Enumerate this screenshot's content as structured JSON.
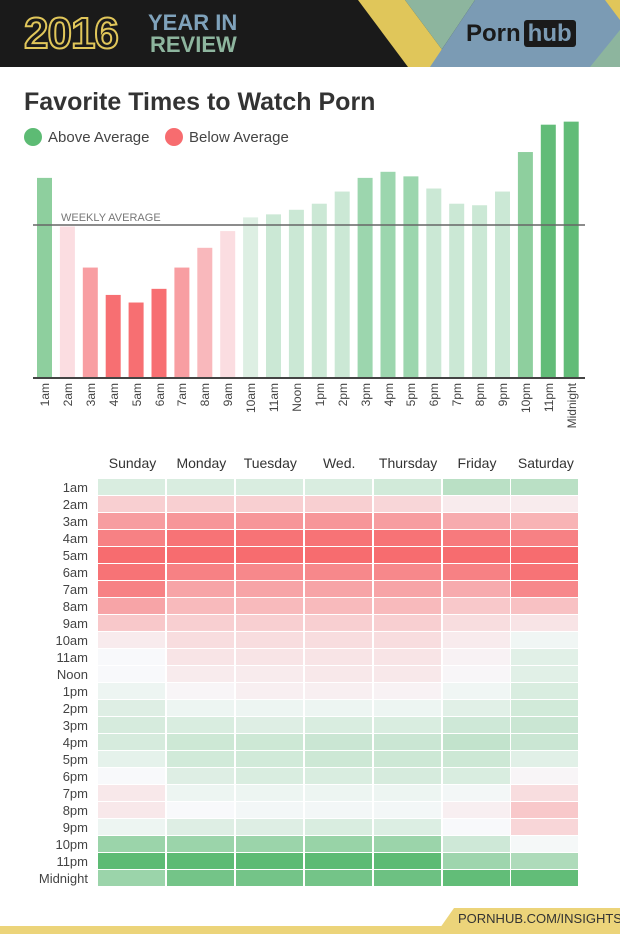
{
  "header": {
    "year": "2016",
    "year_in": "YEAR IN",
    "review": "REVIEW",
    "logo_porn": "Porn",
    "logo_hub": "hub",
    "stripe_colors": {
      "yellow": "#e0c65a",
      "green": "#8db59e",
      "blue": "#7b9bb4"
    }
  },
  "title": "Favorite Times to Watch Porn",
  "legend": {
    "above": "Above Average",
    "below": "Below Average",
    "above_color": "#5dbb74",
    "below_color": "#f76c6f"
  },
  "chart_data": [
    {
      "type": "bar",
      "title": "Favorite Times to Watch Porn",
      "reference_line_label": "WEEKLY AVERAGE",
      "reference_value": 100,
      "categories": [
        "1am",
        "2am",
        "3am",
        "4am",
        "5am",
        "6am",
        "7am",
        "8am",
        "9am",
        "10am",
        "11am",
        "Noon",
        "1pm",
        "2pm",
        "3pm",
        "4pm",
        "5pm",
        "6pm",
        "7pm",
        "8pm",
        "9pm",
        "10pm",
        "11pm",
        "Midnight"
      ],
      "values": [
        131,
        99,
        72,
        54,
        49,
        58,
        72,
        85,
        96,
        105,
        107,
        110,
        114,
        122,
        131,
        135,
        132,
        124,
        114,
        113,
        122,
        148,
        166,
        168
      ],
      "colors": [
        "#8ecf9e",
        "#fbdde1",
        "#f89ea2",
        "#f76f72",
        "#f76f72",
        "#f76f72",
        "#f89ea2",
        "#f9b8bc",
        "#fbdde1",
        "#ddefe3",
        "#cbe8d5",
        "#cbe8d5",
        "#cbe8d5",
        "#cbe8d5",
        "#9cd6ae",
        "#9cd6ae",
        "#9cd6ae",
        "#cbe8d5",
        "#cbe8d5",
        "#cbe8d5",
        "#cbe8d5",
        "#8ecf9e",
        "#62bc78",
        "#62bc78"
      ],
      "ylim": [
        0,
        175
      ],
      "grid": false
    },
    {
      "type": "heatmap",
      "columns": [
        "Sunday",
        "Monday",
        "Tuesday",
        "Wed.",
        "Thursday",
        "Friday",
        "Saturday"
      ],
      "rows": [
        "1am",
        "2am",
        "3am",
        "4am",
        "5am",
        "6am",
        "7am",
        "8am",
        "9am",
        "10am",
        "11am",
        "Noon",
        "1pm",
        "2pm",
        "3pm",
        "4pm",
        "5pm",
        "6pm",
        "7pm",
        "8pm",
        "9pm",
        "10pm",
        "11pm",
        "Midnight"
      ],
      "scale": {
        "min": -1,
        "max": 1,
        "low_color": "#f76c6f",
        "mid_color": "#f8f9fb",
        "high_color": "#5dbb74"
      },
      "values": [
        [
          0.2,
          0.2,
          0.2,
          0.2,
          0.25,
          0.4,
          0.4
        ],
        [
          -0.3,
          -0.3,
          -0.3,
          -0.3,
          -0.25,
          -0.1,
          -0.1
        ],
        [
          -0.65,
          -0.7,
          -0.7,
          -0.7,
          -0.65,
          -0.55,
          -0.5
        ],
        [
          -0.85,
          -0.95,
          -0.95,
          -0.95,
          -0.95,
          -0.9,
          -0.85
        ],
        [
          -1,
          -1,
          -1,
          -1,
          -1,
          -1,
          -1
        ],
        [
          -0.95,
          -0.85,
          -0.8,
          -0.8,
          -0.8,
          -0.85,
          -0.95
        ],
        [
          -0.85,
          -0.6,
          -0.6,
          -0.6,
          -0.6,
          -0.55,
          -0.8
        ],
        [
          -0.6,
          -0.45,
          -0.45,
          -0.45,
          -0.45,
          -0.35,
          -0.4
        ],
        [
          -0.35,
          -0.3,
          -0.3,
          -0.3,
          -0.3,
          -0.2,
          -0.15
        ],
        [
          -0.1,
          -0.2,
          -0.2,
          -0.2,
          -0.2,
          -0.1,
          0.05
        ],
        [
          0,
          -0.15,
          -0.15,
          -0.15,
          -0.15,
          -0.05,
          0.15
        ],
        [
          0,
          -0.1,
          -0.1,
          -0.12,
          -0.12,
          -0.02,
          0.15
        ],
        [
          0.07,
          -0.03,
          -0.07,
          -0.07,
          -0.05,
          0.05,
          0.2
        ],
        [
          0.17,
          0.07,
          0.07,
          0.07,
          0.07,
          0.15,
          0.25
        ],
        [
          0.22,
          0.2,
          0.17,
          0.2,
          0.2,
          0.27,
          0.3
        ],
        [
          0.22,
          0.28,
          0.28,
          0.3,
          0.3,
          0.35,
          0.3
        ],
        [
          0.12,
          0.25,
          0.25,
          0.28,
          0.28,
          0.28,
          0.15
        ],
        [
          0,
          0.17,
          0.2,
          0.2,
          0.22,
          0.2,
          -0.03
        ],
        [
          -0.12,
          0.07,
          0.07,
          0.07,
          0.07,
          0.03,
          -0.2
        ],
        [
          -0.12,
          0,
          0.03,
          0.03,
          0.03,
          -0.07,
          -0.35
        ],
        [
          0.07,
          0.17,
          0.17,
          0.2,
          0.18,
          0,
          -0.25
        ],
        [
          0.6,
          0.6,
          0.6,
          0.62,
          0.6,
          0.27,
          0.02
        ],
        [
          1,
          1,
          1,
          1,
          1,
          0.58,
          0.48
        ],
        [
          0.6,
          0.85,
          0.85,
          0.85,
          0.9,
          0.97,
          0.97
        ]
      ]
    }
  ],
  "footer": {
    "link": "PORNHUB.COM/INSIGHTS"
  }
}
